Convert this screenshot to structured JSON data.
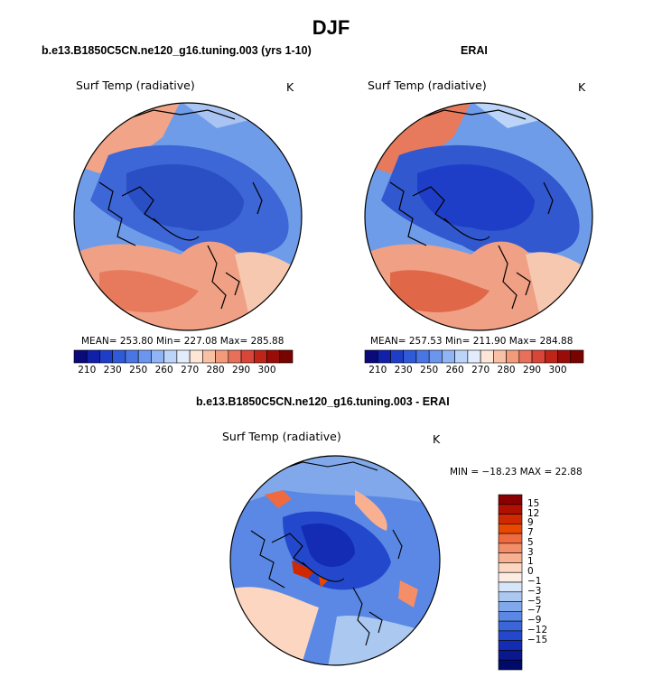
{
  "title": "DJF",
  "panels": [
    {
      "title": "b.e13.B1850C5CN.ne120_g16.tuning.003 (yrs 1-10)",
      "variable": "Surf Temp (radiative)",
      "units": "K",
      "stats": "MEAN= 253.80   Min= 227.08   Max= 285.88"
    },
    {
      "title": "ERAI",
      "variable": "Surf Temp (radiative)",
      "units": "K",
      "stats": "MEAN= 257.53   Min= 211.90   Max= 284.88"
    },
    {
      "title": "b.e13.B1850C5CN.ne120_g16.tuning.003 - ERAI",
      "variable": "Surf Temp (radiative)",
      "units": "K",
      "stats": "MIN = −18.23  MAX =  22.88"
    }
  ],
  "abs_colorbar": {
    "ticks": [
      "210",
      "230",
      "250",
      "260",
      "270",
      "280",
      "290",
      "300"
    ],
    "colors": [
      "#0a0a7a",
      "#1020a8",
      "#1f3ec8",
      "#2f5ad8",
      "#4a76e4",
      "#6a96ee",
      "#90b4f4",
      "#bcd4f8",
      "#e2ecfa",
      "#fde6d8",
      "#f8c0a4",
      "#f29a7a",
      "#e8705a",
      "#d8463a",
      "#be2418",
      "#9a0c08",
      "#780400"
    ]
  },
  "diff_colorbar": {
    "ticks": [
      "15",
      "12",
      "9",
      "7",
      "5",
      "3",
      "1",
      "0",
      "−1",
      "−3",
      "−5",
      "−7",
      "−9",
      "−12",
      "−15"
    ],
    "colors": [
      "#8a0000",
      "#b01000",
      "#d02800",
      "#e84800",
      "#f06a40",
      "#f48e68",
      "#f8b090",
      "#fcd6c0",
      "#fdece2",
      "#d6e6f8",
      "#aac8f0",
      "#80a8ea",
      "#5a88e4",
      "#3a66da",
      "#2448cc",
      "#142cb4",
      "#0a1890",
      "#000a6a"
    ]
  }
}
